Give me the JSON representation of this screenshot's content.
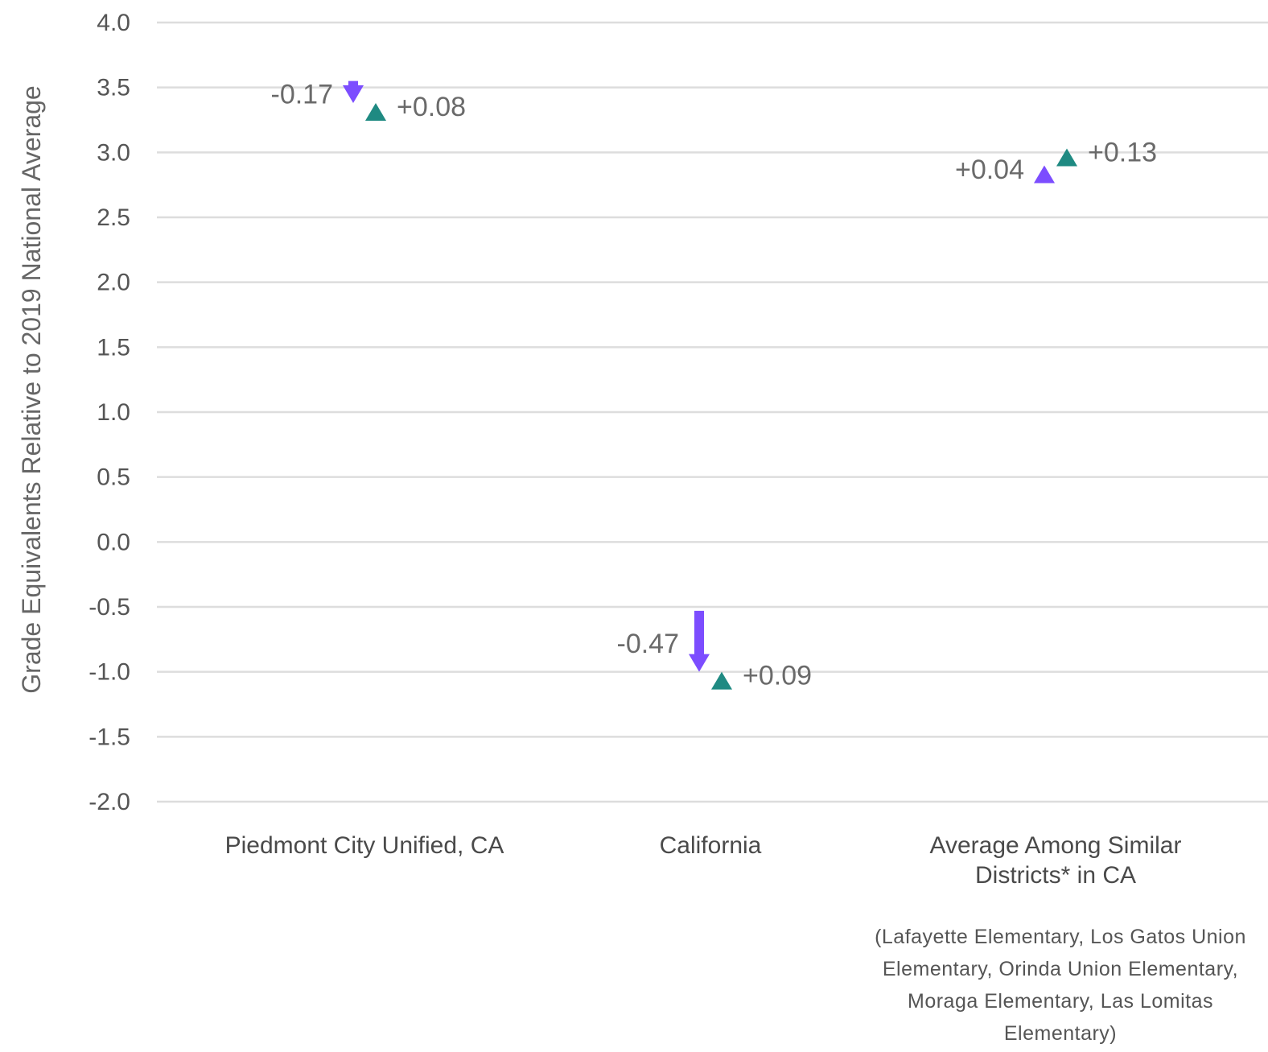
{
  "chart_data": {
    "type": "arrow",
    "ylabel": "Grade Equivalents Relative to 2019 National Average",
    "ylim": [
      -2.0,
      4.0
    ],
    "yticks": [
      "4.0",
      "3.5",
      "3.0",
      "2.5",
      "2.0",
      "1.5",
      "1.0",
      "0.5",
      "0.0",
      "-0.5",
      "-1.0",
      "-1.5",
      "-2.0"
    ],
    "grid": true,
    "categories": [
      {
        "lines": [
          "Piedmont City Unified, CA"
        ]
      },
      {
        "lines": [
          "California"
        ]
      },
      {
        "lines": [
          "Average Among Similar",
          "Districts* in CA"
        ],
        "note": [
          "(Lafayette Elementary, Los Gatos Union",
          "Elementary, Orinda Union Elementary,",
          "Moraga Elementary, Las Lomitas",
          "Elementary)"
        ]
      }
    ],
    "series": [
      {
        "color": "#7c4dff",
        "start": [
          3.55,
          -0.53,
          2.86
        ],
        "end": [
          3.38,
          -1.0,
          2.9
        ],
        "labels": [
          "-0.17",
          "-0.47",
          "+0.04"
        ]
      },
      {
        "color": "#1f8a82",
        "start": [
          3.3,
          -1.09,
          2.9
        ],
        "end": [
          3.38,
          -1.0,
          3.03
        ],
        "labels": [
          "+0.08",
          "+0.09",
          "+0.13"
        ]
      }
    ]
  }
}
